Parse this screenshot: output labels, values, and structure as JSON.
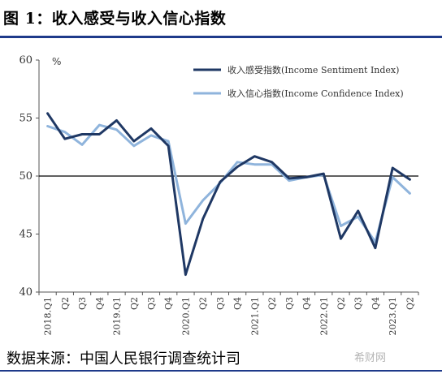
{
  "title": "图 1：收入感受与收入信心指数",
  "source": "数据来源：中国人民银行调查统计司",
  "watermark": "希财网",
  "chart_data": {
    "type": "line",
    "ylabel": "%",
    "ylim": [
      40,
      60
    ],
    "yticks": [
      40,
      45,
      50,
      55,
      60
    ],
    "baseline": 50,
    "categories": [
      "2018.Q1",
      "Q2",
      "Q3",
      "Q4",
      "2019.Q1",
      "Q2",
      "Q3",
      "Q4",
      "2020.Q1",
      "Q2",
      "Q3",
      "Q4",
      "2021.Q1",
      "Q2",
      "Q3",
      "Q4",
      "2022.Q1",
      "Q2",
      "Q3",
      "Q4",
      "2023.Q1",
      "Q2"
    ],
    "series": [
      {
        "name": "收入感受指数(Income Sentiment Index)",
        "color": "#1f3864",
        "width": 3,
        "values": [
          55.4,
          53.2,
          53.6,
          53.6,
          54.8,
          53.0,
          54.1,
          52.6,
          41.5,
          46.3,
          49.5,
          50.8,
          51.7,
          51.2,
          49.8,
          49.9,
          50.2,
          44.6,
          47.0,
          43.8,
          50.7,
          49.7
        ]
      },
      {
        "name": "收入信心指数(Income Confidence Index)",
        "color": "#8fb4dc",
        "width": 3,
        "values": [
          54.3,
          53.8,
          52.7,
          54.4,
          54.0,
          52.6,
          53.5,
          53.0,
          45.9,
          47.9,
          49.4,
          51.2,
          51.0,
          51.0,
          49.6,
          49.9,
          50.1,
          45.7,
          46.5,
          44.3,
          49.9,
          48.5
        ]
      }
    ],
    "legend_position": "top-right"
  }
}
